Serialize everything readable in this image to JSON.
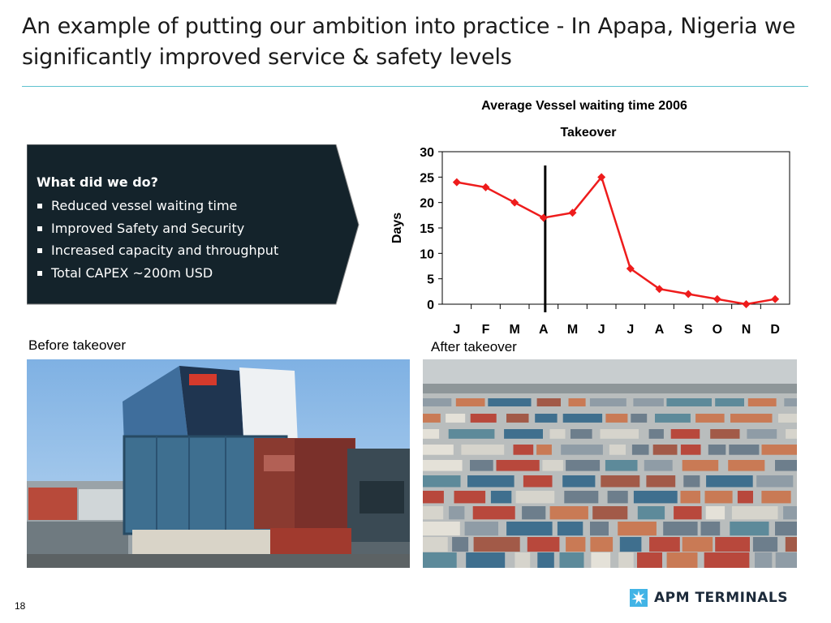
{
  "slide": {
    "title": "An example of putting our ambition into practice - In Apapa, Nigeria we significantly improved service & safety levels",
    "page_number": "18"
  },
  "callout": {
    "heading": "What did we do?",
    "bullets": [
      "Reduced vessel waiting time",
      "Improved Safety and Security",
      "Increased capacity and throughput",
      "Total CAPEX ~200m USD"
    ],
    "background_color": "#14232b"
  },
  "photos": {
    "before_label": "Before takeover",
    "after_label": "After takeover"
  },
  "logo": {
    "text": "APM TERMINALS",
    "icon": "seven-pointed-star-icon",
    "color": "#42b4e6"
  },
  "chart_data": {
    "type": "line",
    "title": "Average Vessel waiting time 2006",
    "ylabel": "Days",
    "xlabel": "",
    "categories": [
      "J",
      "F",
      "M",
      "A",
      "M",
      "J",
      "J",
      "A",
      "S",
      "O",
      "N",
      "D"
    ],
    "series": [
      {
        "values": [
          24,
          23,
          20,
          17,
          18,
          25,
          7,
          3,
          2,
          1,
          0,
          1
        ],
        "color": "#ee1c1c"
      }
    ],
    "ylim": [
      0,
      30
    ],
    "yticks": [
      0,
      5,
      10,
      15,
      20,
      25,
      30
    ],
    "grid": true,
    "annotation": {
      "label": "Takeover",
      "at_category": "A"
    }
  }
}
